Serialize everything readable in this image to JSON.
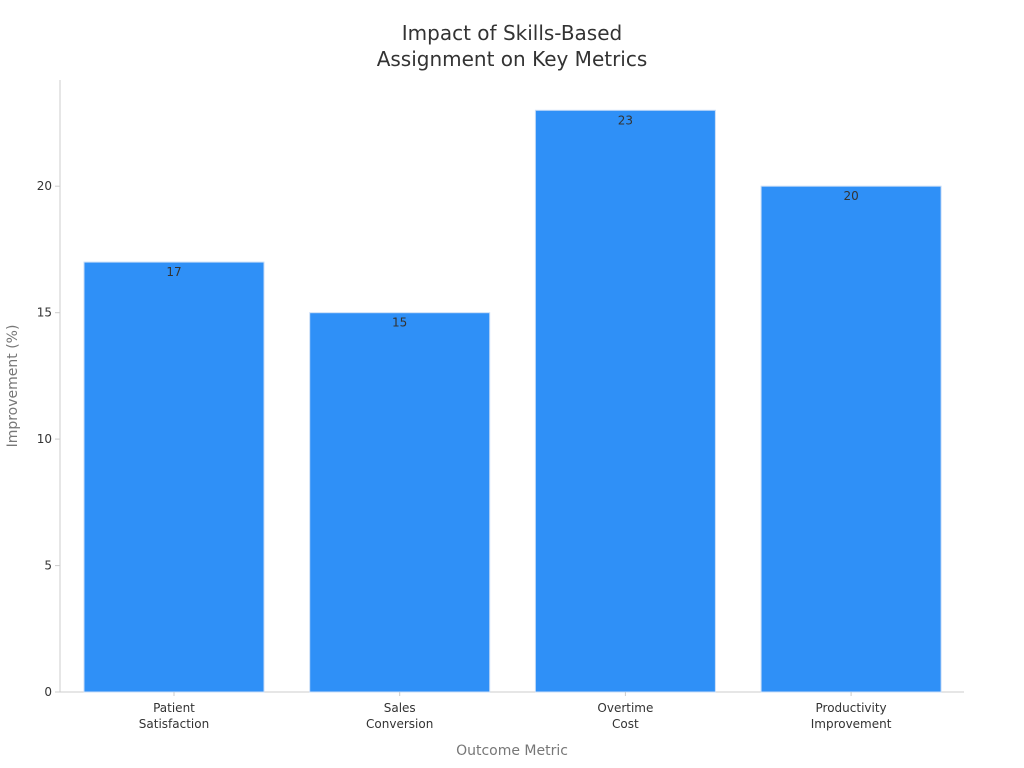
{
  "colors": {
    "bar": "#2f90f7",
    "bar_stroke": "#c8ddf7",
    "axis": "#cccccc",
    "text": "#333333",
    "axis_label": "#777777"
  },
  "chart_data": {
    "type": "bar",
    "title": [
      "Impact of Skills-Based",
      "Assignment on Key Metrics"
    ],
    "xlabel": "Outcome Metric",
    "ylabel": "Improvement (%)",
    "categories": [
      [
        "Patient",
        "Satisfaction"
      ],
      [
        "Sales",
        "Conversion"
      ],
      [
        "Overtime",
        "Cost"
      ],
      [
        "Productivity",
        "Improvement"
      ]
    ],
    "values": [
      17,
      15,
      23,
      20
    ],
    "ylim": [
      0,
      24.2
    ],
    "yticks": [
      0,
      5,
      10,
      15,
      20
    ],
    "grid": false,
    "legend": "none"
  }
}
